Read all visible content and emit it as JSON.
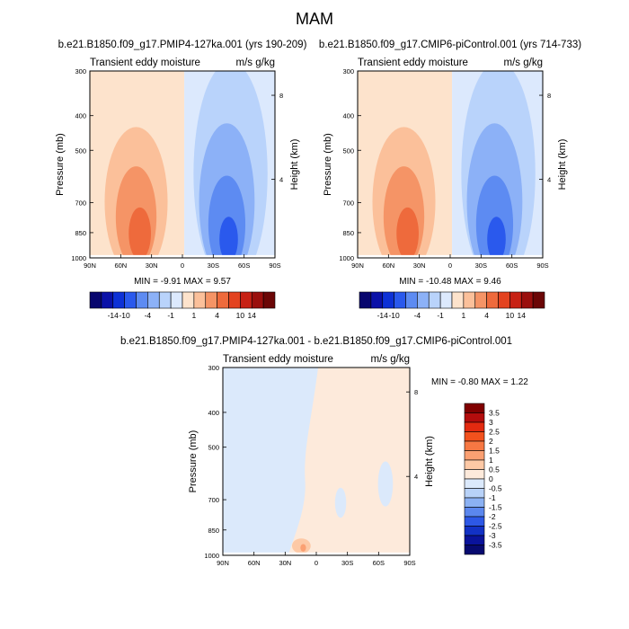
{
  "figure": {
    "title": "MAM"
  },
  "chart_data": [
    {
      "type": "heatmap",
      "title": "b.e21.B1850.f09_g17.PMIP4-127ka.001 (yrs 190-209)",
      "left_title": "Transient eddy moisture",
      "units": "m/s g/kg",
      "ylabel": "Pressure (mb)",
      "ylabel_right": "Height (km)",
      "x_ticks": [
        "90N",
        "60N",
        "30N",
        "0",
        "30S",
        "60S",
        "90S"
      ],
      "y_ticks": [
        "300",
        "400",
        "500",
        "700",
        "850",
        "1000"
      ],
      "y_ticks_right": [
        "8",
        "4"
      ],
      "min_label": "MIN =",
      "min_value": "-9.91",
      "max_label": "MAX =",
      "max_value": "9.57",
      "colorbar_labels": [
        "-14",
        "-10",
        "-4",
        "-1",
        "1",
        "4",
        "10",
        "14"
      ]
    },
    {
      "type": "heatmap",
      "title": "b.e21.B1850.f09_g17.CMIP6-piControl.001 (yrs 714-733)",
      "left_title": "Transient eddy moisture",
      "units": "m/s g/kg",
      "ylabel": "Pressure (mb)",
      "ylabel_right": "Height (km)",
      "x_ticks": [
        "90N",
        "60N",
        "30N",
        "0",
        "30S",
        "60S",
        "90S"
      ],
      "y_ticks": [
        "300",
        "400",
        "500",
        "700",
        "850",
        "1000"
      ],
      "y_ticks_right": [
        "8",
        "4"
      ],
      "min_label": "MIN =",
      "min_value": "-10.48",
      "max_label": "MAX =",
      "max_value": "9.46",
      "colorbar_labels": [
        "-14",
        "-10",
        "-4",
        "-1",
        "1",
        "4",
        "10",
        "14"
      ]
    },
    {
      "type": "heatmap",
      "title": "b.e21.B1850.f09_g17.PMIP4-127ka.001 - b.e21.B1850.f09_g17.CMIP6-piControl.001",
      "left_title": "Transient eddy moisture",
      "units": "m/s g/kg",
      "ylabel": "Pressure (mb)",
      "ylabel_right": "Height (km)",
      "x_ticks": [
        "90N",
        "60N",
        "30N",
        "0",
        "30S",
        "60S",
        "90S"
      ],
      "y_ticks": [
        "300",
        "400",
        "500",
        "700",
        "850",
        "1000"
      ],
      "y_ticks_right": [
        "8",
        "4"
      ],
      "min_label": "MIN =",
      "min_value": "-0.80",
      "max_label": "MAX =",
      "max_value": "1.22",
      "colorbar_labels": [
        "3.5",
        "3",
        "2.5",
        "2",
        "1.5",
        "1",
        "0.5",
        "0",
        "-0.5",
        "-1",
        "-1.5",
        "-2",
        "-2.5",
        "-3",
        "-3.5"
      ]
    }
  ],
  "colors": {
    "field_scale": [
      "#08066e",
      "#0a11a8",
      "#0d31d6",
      "#2a59ed",
      "#5d8bf2",
      "#8cb1f7",
      "#b9d3fb",
      "#dce9fd",
      "#fde3cc",
      "#fbc09a",
      "#f59466",
      "#ee6a3c",
      "#e34320",
      "#c72114",
      "#9a0f0d",
      "#6b0606"
    ],
    "diff_scale": [
      "#800000",
      "#b30d0d",
      "#e32a10",
      "#f2511d",
      "#f77843",
      "#fba072",
      "#fdc9a6",
      "#fdeadb",
      "#dbe9fb",
      "#b8d2f8",
      "#8bb1f3",
      "#5b87ee",
      "#2d58e6",
      "#1231c5",
      "#0a139b",
      "#070a70"
    ]
  }
}
